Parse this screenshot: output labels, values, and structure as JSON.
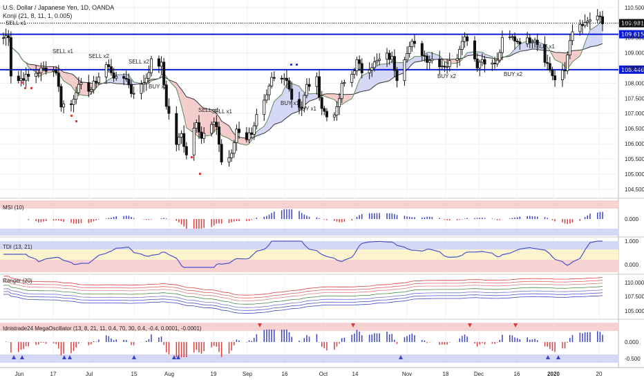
{
  "header": {
    "symbol_line": "U.S. Dollar / Japanese Yen, 1D, OANDA",
    "indicator_line": "Konji (21, 8, 11, 1, 0.005)"
  },
  "price_axis": {
    "ticks": [
      "110.500",
      "110.000",
      "109.500",
      "109.000",
      "108.500",
      "108.000",
      "107.500",
      "107.000",
      "106.500",
      "106.000",
      "105.500",
      "105.000",
      "104.500"
    ],
    "ylim": [
      104.2,
      110.7
    ]
  },
  "levels": [
    {
      "label": "109.981",
      "value": 109.981,
      "style": "dotted",
      "color": "#000000"
    },
    {
      "label": "109.615",
      "value": 109.615,
      "style": "solid",
      "color": "#0a1bd6"
    },
    {
      "label": "108.446",
      "value": 108.446,
      "style": "solid",
      "color": "#0a1bd6"
    }
  ],
  "x_axis": {
    "labels": [
      "Jun",
      "17",
      "Jul",
      "15",
      "Aug",
      "19",
      "Sep",
      "16",
      "Oct",
      "14",
      "Nov",
      "18",
      "Dec",
      "16",
      "2020",
      "20"
    ]
  },
  "signals": [
    {
      "label": "SELL x1",
      "type": "sell"
    },
    {
      "label": "SELL x1",
      "type": "sell"
    },
    {
      "label": "SELL x2",
      "type": "sell"
    },
    {
      "label": "SELL x2",
      "type": "sell"
    },
    {
      "label": "SELL x1",
      "type": "sell"
    },
    {
      "label": "SELL x1",
      "type": "sell"
    },
    {
      "label": "BUY x2",
      "type": "buy"
    },
    {
      "label": "BUY x1",
      "type": "buy"
    },
    {
      "label": "BUY x1",
      "type": "buy"
    },
    {
      "label": "BUY x2",
      "type": "buy"
    },
    {
      "label": "BUY x2",
      "type": "buy"
    },
    {
      "label": "BUY x1",
      "type": "buy"
    }
  ],
  "panels": [
    {
      "title": "MSI (10)",
      "ticks": [
        "0.000"
      ]
    },
    {
      "title": "TDI (13, 21)",
      "ticks": [
        "1.000",
        "0.000"
      ]
    },
    {
      "title": "Ranger (20)",
      "ticks": [
        "110.000",
        "107.500",
        "105.000"
      ]
    },
    {
      "title": "Idnistrade24 MegaOscillator (13, 8, 21, 11, 0.4, 70, 30, 0.4, -0.4, 0.0001, -0.0001)",
      "ticks": [
        "0.000",
        "-0.500"
      ]
    }
  ],
  "colors": {
    "buy": "#3b42c4",
    "sell": "#e03b3b",
    "level": "#0a1bd6",
    "cloud_sell": "#f4c7c7",
    "cloud_buy": "#cfd3f5"
  },
  "chart_data": {
    "type": "candlestick",
    "title": "U.S. Dollar / Japanese Yen, 1D, OANDA",
    "x_start": "2019-05-28",
    "x_end": "2020-01-22",
    "ylim": [
      104.2,
      110.7
    ],
    "close_series": [
      [
        "2019-05-28",
        109.5
      ],
      [
        "2019-05-30",
        109.6
      ],
      [
        "2019-05-31",
        108.3
      ],
      [
        "2019-06-03",
        108.1
      ],
      [
        "2019-06-05",
        108.2
      ],
      [
        "2019-06-07",
        108.2
      ],
      [
        "2019-06-11",
        108.4
      ],
      [
        "2019-06-14",
        108.5
      ],
      [
        "2019-06-18",
        108.4
      ],
      [
        "2019-06-20",
        107.3
      ],
      [
        "2019-06-24",
        107.3
      ],
      [
        "2019-06-26",
        107.8
      ],
      [
        "2019-06-28",
        107.9
      ],
      [
        "2019-07-02",
        107.8
      ],
      [
        "2019-07-04",
        108.1
      ],
      [
        "2019-07-08",
        108.6
      ],
      [
        "2019-07-10",
        108.4
      ],
      [
        "2019-07-12",
        108.1
      ],
      [
        "2019-07-16",
        108.2
      ],
      [
        "2019-07-18",
        107.7
      ],
      [
        "2019-07-22",
        107.9
      ],
      [
        "2019-07-24",
        108.2
      ],
      [
        "2019-07-26",
        108.7
      ],
      [
        "2019-07-30",
        108.6
      ],
      [
        "2019-08-01",
        107.3
      ],
      [
        "2019-08-05",
        106.0
      ],
      [
        "2019-08-07",
        106.3
      ],
      [
        "2019-08-09",
        105.7
      ],
      [
        "2019-08-13",
        106.8
      ],
      [
        "2019-08-15",
        106.2
      ],
      [
        "2019-08-19",
        106.6
      ],
      [
        "2019-08-21",
        106.6
      ],
      [
        "2019-08-23",
        105.4
      ],
      [
        "2019-08-27",
        105.6
      ],
      [
        "2019-08-29",
        106.5
      ],
      [
        "2019-09-02",
        106.2
      ],
      [
        "2019-09-04",
        106.4
      ],
      [
        "2019-09-06",
        106.9
      ],
      [
        "2019-09-10",
        107.5
      ],
      [
        "2019-09-12",
        108.1
      ],
      [
        "2019-09-16",
        108.1
      ],
      [
        "2019-09-18",
        108.2
      ],
      [
        "2019-09-20",
        107.5
      ],
      [
        "2019-09-24",
        107.2
      ],
      [
        "2019-09-26",
        107.9
      ],
      [
        "2019-09-30",
        108.1
      ],
      [
        "2019-10-02",
        107.2
      ],
      [
        "2019-10-04",
        106.9
      ],
      [
        "2019-10-08",
        107.1
      ],
      [
        "2019-10-10",
        107.9
      ],
      [
        "2019-10-14",
        108.3
      ],
      [
        "2019-10-16",
        108.7
      ],
      [
        "2019-10-18",
        108.4
      ],
      [
        "2019-10-22",
        108.6
      ],
      [
        "2019-10-24",
        108.7
      ],
      [
        "2019-10-28",
        108.9
      ],
      [
        "2019-10-30",
        108.8
      ],
      [
        "2019-11-01",
        108.2
      ],
      [
        "2019-11-05",
        109.1
      ],
      [
        "2019-11-07",
        109.3
      ],
      [
        "2019-11-11",
        109.0
      ],
      [
        "2019-11-13",
        108.8
      ],
      [
        "2019-11-15",
        108.8
      ],
      [
        "2019-11-19",
        108.6
      ],
      [
        "2019-11-21",
        108.6
      ],
      [
        "2019-11-25",
        108.9
      ],
      [
        "2019-11-27",
        109.5
      ],
      [
        "2019-11-29",
        109.5
      ],
      [
        "2019-12-03",
        108.6
      ],
      [
        "2019-12-05",
        108.8
      ],
      [
        "2019-12-09",
        108.6
      ],
      [
        "2019-12-11",
        108.7
      ],
      [
        "2019-12-13",
        109.4
      ],
      [
        "2019-12-17",
        109.5
      ],
      [
        "2019-12-19",
        109.4
      ],
      [
        "2019-12-23",
        109.4
      ],
      [
        "2019-12-26",
        109.5
      ],
      [
        "2019-12-30",
        108.8
      ],
      [
        "2020-01-03",
        108.1
      ],
      [
        "2020-01-07",
        108.4
      ],
      [
        "2020-01-09",
        109.5
      ],
      [
        "2020-01-13",
        109.9
      ],
      [
        "2020-01-15",
        109.9
      ],
      [
        "2020-01-17",
        110.1
      ],
      [
        "2020-01-21",
        110.1
      ],
      [
        "2020-01-22",
        109.98
      ]
    ]
  }
}
